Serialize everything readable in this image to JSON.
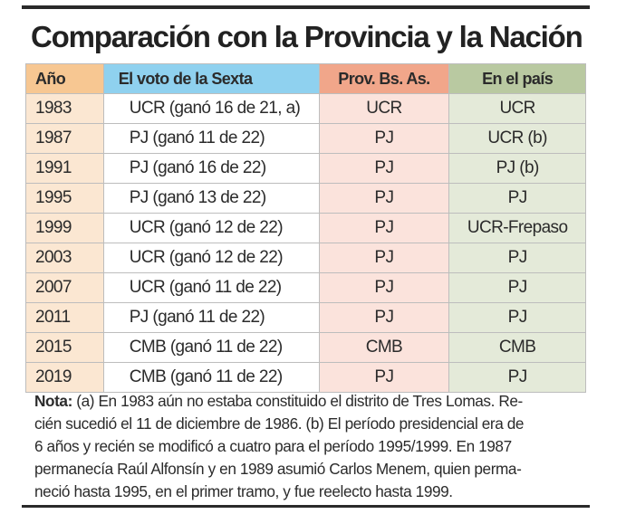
{
  "title": "Comparación con la Provincia y la Nación",
  "table": {
    "headers": [
      "Año",
      "El voto de la Sexta",
      "Prov. Bs. As.",
      "En el país"
    ],
    "rows": [
      [
        "1983",
        "UCR (ganó 16 de 21, a)",
        "UCR",
        "UCR"
      ],
      [
        "1987",
        "PJ (ganó 11 de 22)",
        "PJ",
        "UCR (b)"
      ],
      [
        "1991",
        "PJ (ganó 16 de 22)",
        "PJ",
        "PJ (b)"
      ],
      [
        "1995",
        "PJ (ganó 13 de 22)",
        "PJ",
        "PJ"
      ],
      [
        "1999",
        "UCR (ganó 12 de 22)",
        "PJ",
        "UCR-Frepaso"
      ],
      [
        "2003",
        "UCR (ganó 12 de 22)",
        "PJ",
        "PJ"
      ],
      [
        "2007",
        "UCR (ganó 11 de 22)",
        "PJ",
        "PJ"
      ],
      [
        "2011",
        "PJ (ganó 11 de 22)",
        "PJ",
        "PJ"
      ],
      [
        "2015",
        "CMB (ganó 11 de 22)",
        "CMB",
        "CMB"
      ],
      [
        "2019",
        "CMB (ganó 11 de 22)",
        "PJ",
        "PJ"
      ]
    ]
  },
  "note": {
    "label": "Nota:",
    "lines": [
      " (a) En 1983 aún no estaba constituido el distrito de Tres Lomas. Re-",
      "cién sucedió el 11 de diciembre de 1986. (b) El período presidencial era de",
      "6 años y recién se modificó a cuatro para el período 1995/1999. En 1987",
      "permanecía Raúl Alfonsín y en 1989 asumió Carlos Menem, quien perma-",
      "neció hasta 1995, en el primer tramo, y fue reelecto hasta 1999."
    ]
  },
  "colors": {
    "header_year": "#f7c792",
    "header_sexta": "#8fd1ef",
    "header_prov": "#f1a68a",
    "header_pais": "#b9c9a1",
    "cell_year": "#fbe7d2",
    "cell_prov": "#fbe3dc",
    "cell_pais": "#e4ead9"
  }
}
